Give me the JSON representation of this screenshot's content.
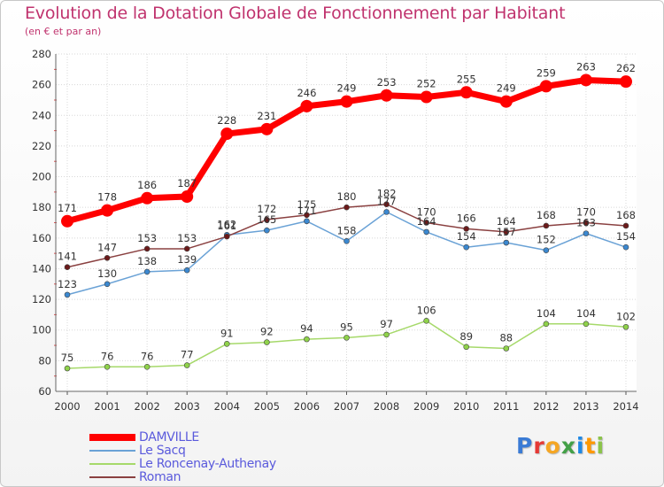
{
  "title": "Evolution de la Dotation Globale de Fonctionnement par Habitant",
  "subtitle": "(en € et par an)",
  "logo": {
    "text": "Proxiti",
    "letter_colors": [
      "#3a7bd5",
      "#e53935",
      "#f5a623",
      "#43a047",
      "#1e88e5",
      "#ff9800",
      "#8bc34a"
    ]
  },
  "chart_data": {
    "type": "line",
    "x": [
      "2000",
      "2001",
      "2002",
      "2003",
      "2004",
      "2005",
      "2006",
      "2007",
      "2008",
      "2009",
      "2010",
      "2011",
      "2012",
      "2013",
      "2014"
    ],
    "ylim": [
      60,
      280
    ],
    "yticks": [
      "60",
      "80",
      "100",
      "120",
      "140",
      "160",
      "180",
      "200",
      "220",
      "240",
      "260",
      "280"
    ],
    "grid": true,
    "legend_position": "bottom-left",
    "series": [
      {
        "name": "DAMVILLE",
        "color": "#ff0000",
        "width": 7,
        "marker": 7,
        "values": [
          171,
          178,
          186,
          187,
          228,
          231,
          246,
          249,
          253,
          252,
          255,
          249,
          259,
          263,
          262
        ],
        "labels": [
          "171",
          "178",
          "186",
          "187",
          "228",
          "231",
          "246",
          "249",
          "253",
          "252",
          "255",
          "249",
          "259",
          "263",
          "262"
        ]
      },
      {
        "name": "Le Sacq",
        "color": "#6aa2d6",
        "marker_color": "#3b88d0",
        "width": 1.5,
        "marker": 3,
        "values": [
          123,
          130,
          138,
          139,
          162,
          165,
          171,
          158,
          177,
          164,
          154,
          157,
          152,
          163,
          154
        ],
        "labels": [
          "123",
          "130",
          "138",
          "139",
          "162",
          "165",
          "171",
          "158",
          "177",
          "164",
          "154",
          "157",
          "152",
          "163",
          "154"
        ]
      },
      {
        "name": "Le Roncenay-Authenay",
        "color": "#a6d96a",
        "marker_color": "#8fd24a",
        "width": 1.5,
        "marker": 3,
        "values": [
          75,
          76,
          76,
          77,
          91,
          92,
          94,
          95,
          97,
          106,
          89,
          88,
          104,
          104,
          102
        ],
        "labels": [
          "75",
          "76",
          "76",
          "77",
          "91",
          "92",
          "94",
          "95",
          "97",
          "106",
          "89",
          "88",
          "104",
          "104",
          "102"
        ]
      },
      {
        "name": "Roman",
        "color": "#8a4040",
        "marker_color": "#6b1a1a",
        "width": 1.5,
        "marker": 3,
        "values": [
          141,
          147,
          153,
          153,
          161,
          172,
          175,
          180,
          182,
          170,
          166,
          164,
          168,
          170,
          168
        ],
        "labels": [
          "141",
          "147",
          "153",
          "153",
          "161",
          "172",
          "175",
          "180",
          "182",
          "170",
          "166",
          "164",
          "168",
          "170",
          "168"
        ]
      }
    ]
  }
}
